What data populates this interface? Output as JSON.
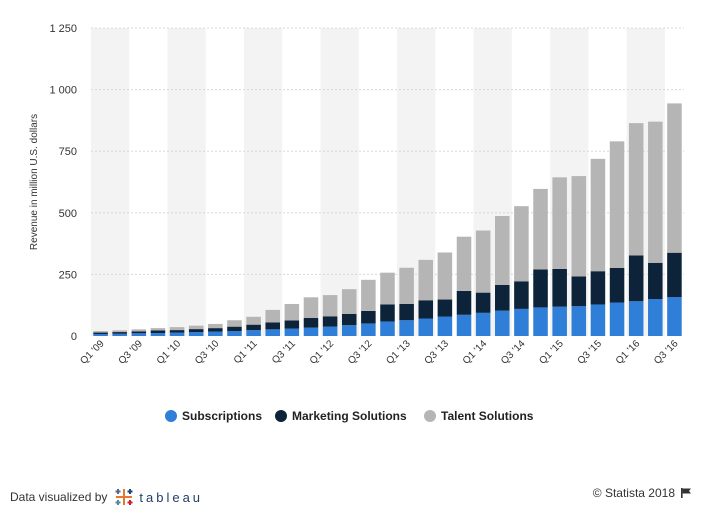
{
  "chart_data": {
    "type": "bar",
    "stacked": true,
    "ylabel": "Revenue in million U.S. dollars",
    "ylim": [
      0,
      1250
    ],
    "yticks": [
      0,
      250,
      500,
      750,
      1000,
      1250
    ],
    "ytick_labels": [
      "0",
      "250",
      "500",
      "750",
      "1 000",
      "1 250"
    ],
    "grid": true,
    "legend_position": "bottom",
    "categories": [
      "Q1 '09",
      "Q2 '09",
      "Q3 '09",
      "Q4 '09",
      "Q1 '10",
      "Q2 '10",
      "Q3 '10",
      "Q4 '10",
      "Q1 '11",
      "Q2 '11",
      "Q3 '11",
      "Q4 '11",
      "Q1 '12",
      "Q2 '12",
      "Q3 '12",
      "Q4 '12",
      "Q1 '13",
      "Q2 '13",
      "Q3 '13",
      "Q4 '13",
      "Q1 '14",
      "Q2 '14",
      "Q3 '14",
      "Q4 '14",
      "Q1 '15",
      "Q2 '15",
      "Q3 '15",
      "Q4 '15",
      "Q1 '16",
      "Q2 '16",
      "Q3 '16"
    ],
    "xtick_labels": [
      "Q1 '09",
      "",
      "Q3 '09",
      "",
      "Q1 '10",
      "",
      "Q3 '10",
      "",
      "Q1 '11",
      "",
      "Q3 '11",
      "",
      "Q1 '12",
      "",
      "Q3 '12",
      "",
      "Q1 '13",
      "",
      "Q3 '13",
      "",
      "Q1 '14",
      "",
      "Q3 '14",
      "",
      "Q1 '15",
      "",
      "Q3 '15",
      "",
      "Q1 '16",
      "",
      "Q3 '16"
    ],
    "series": [
      {
        "name": "Subscriptions",
        "color": "#2f7ed8",
        "values": [
          8,
          9,
          11,
          12,
          14,
          16,
          18,
          20,
          24,
          27,
          30,
          34,
          38,
          44,
          51,
          59,
          64,
          71,
          79,
          86,
          94,
          103,
          110,
          116,
          119,
          121,
          128,
          136,
          141,
          150,
          158
        ]
      },
      {
        "name": "Marketing Solutions",
        "color": "#0d233a",
        "values": [
          6,
          7,
          8,
          11,
          10,
          12,
          14,
          18,
          22,
          28,
          33,
          39,
          42,
          46,
          51,
          69,
          66,
          74,
          69,
          97,
          82,
          104,
          112,
          154,
          153,
          121,
          135,
          140,
          186,
          147,
          180
        ]
      },
      {
        "name": "Talent Solutions",
        "color": "#b5b5b5",
        "values": [
          6,
          7,
          8,
          9,
          12,
          14,
          17,
          26,
          32,
          51,
          67,
          84,
          86,
          100,
          126,
          129,
          147,
          164,
          191,
          220,
          252,
          280,
          305,
          327,
          372,
          407,
          456,
          514,
          537,
          573,
          606
        ]
      }
    ]
  },
  "footer": {
    "credit_prefix": "Data visualized by",
    "credit_brand": "tableau",
    "copyright": "© Statista 2018"
  },
  "icons": {
    "tableau_logo": "tableau-plus-logo-icon",
    "flag": "flag-icon"
  }
}
